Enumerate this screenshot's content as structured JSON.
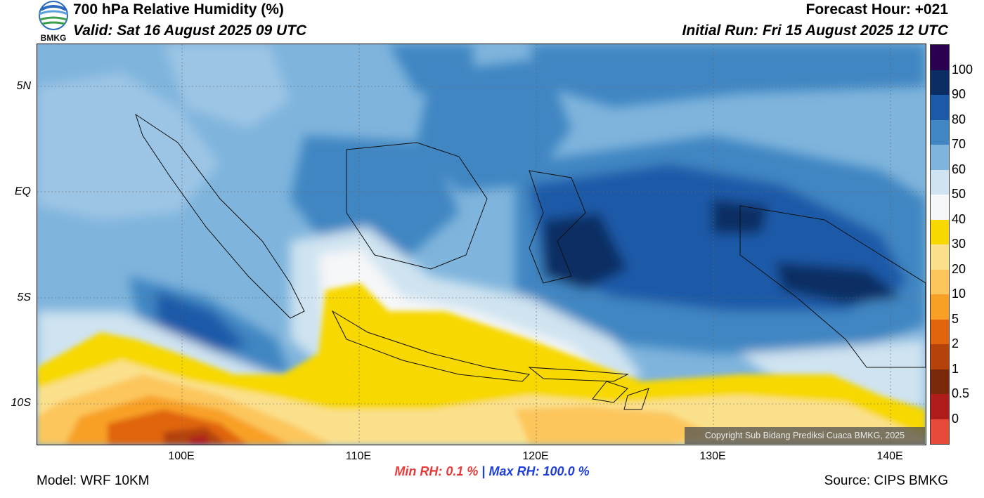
{
  "header": {
    "title": "700 hPa Relative Humidity (%)",
    "valid": "Valid: Sat 16 August 2025 09 UTC",
    "forecast_hour": "Forecast Hour: +021",
    "initial_run": "Initial Run: Fri 15 August 2025 12 UTC"
  },
  "logo": {
    "text": "BMKG"
  },
  "axes": {
    "lat_labels": [
      "5N",
      "EQ",
      "5S",
      "10S"
    ],
    "lon_labels": [
      "100E",
      "110E",
      "120E",
      "130E",
      "140E"
    ]
  },
  "colorbar": {
    "labels": [
      "100",
      "90",
      "80",
      "70",
      "60",
      "50",
      "40",
      "30",
      "20",
      "10",
      "5",
      "2",
      "1",
      "0.5",
      "0"
    ],
    "colors": [
      "#2b0050",
      "#0c2d63",
      "#1c5aa8",
      "#3f86c2",
      "#7fb4dc",
      "#cfe3f0",
      "#f6f7f8",
      "#f7d800",
      "#fbe08c",
      "#fcc65c",
      "#f8a026",
      "#e0650e",
      "#b4420a",
      "#7a2a0a",
      "#b01c1c",
      "#e84a3a"
    ]
  },
  "stats": {
    "min_label": "Min RH:",
    "min_value": "0.1 %",
    "separator": "|",
    "max_label": "Max RH:",
    "max_value": "100.0 %",
    "min_color": "#e63a3a",
    "max_color": "#1f3fd6"
  },
  "footer": {
    "model": "Model: WRF 10KM",
    "source": "Source: CIPS BMKG",
    "copyright": "Copyright Sub Bidang Prediksi Cuaca BMKG, 2025"
  }
}
